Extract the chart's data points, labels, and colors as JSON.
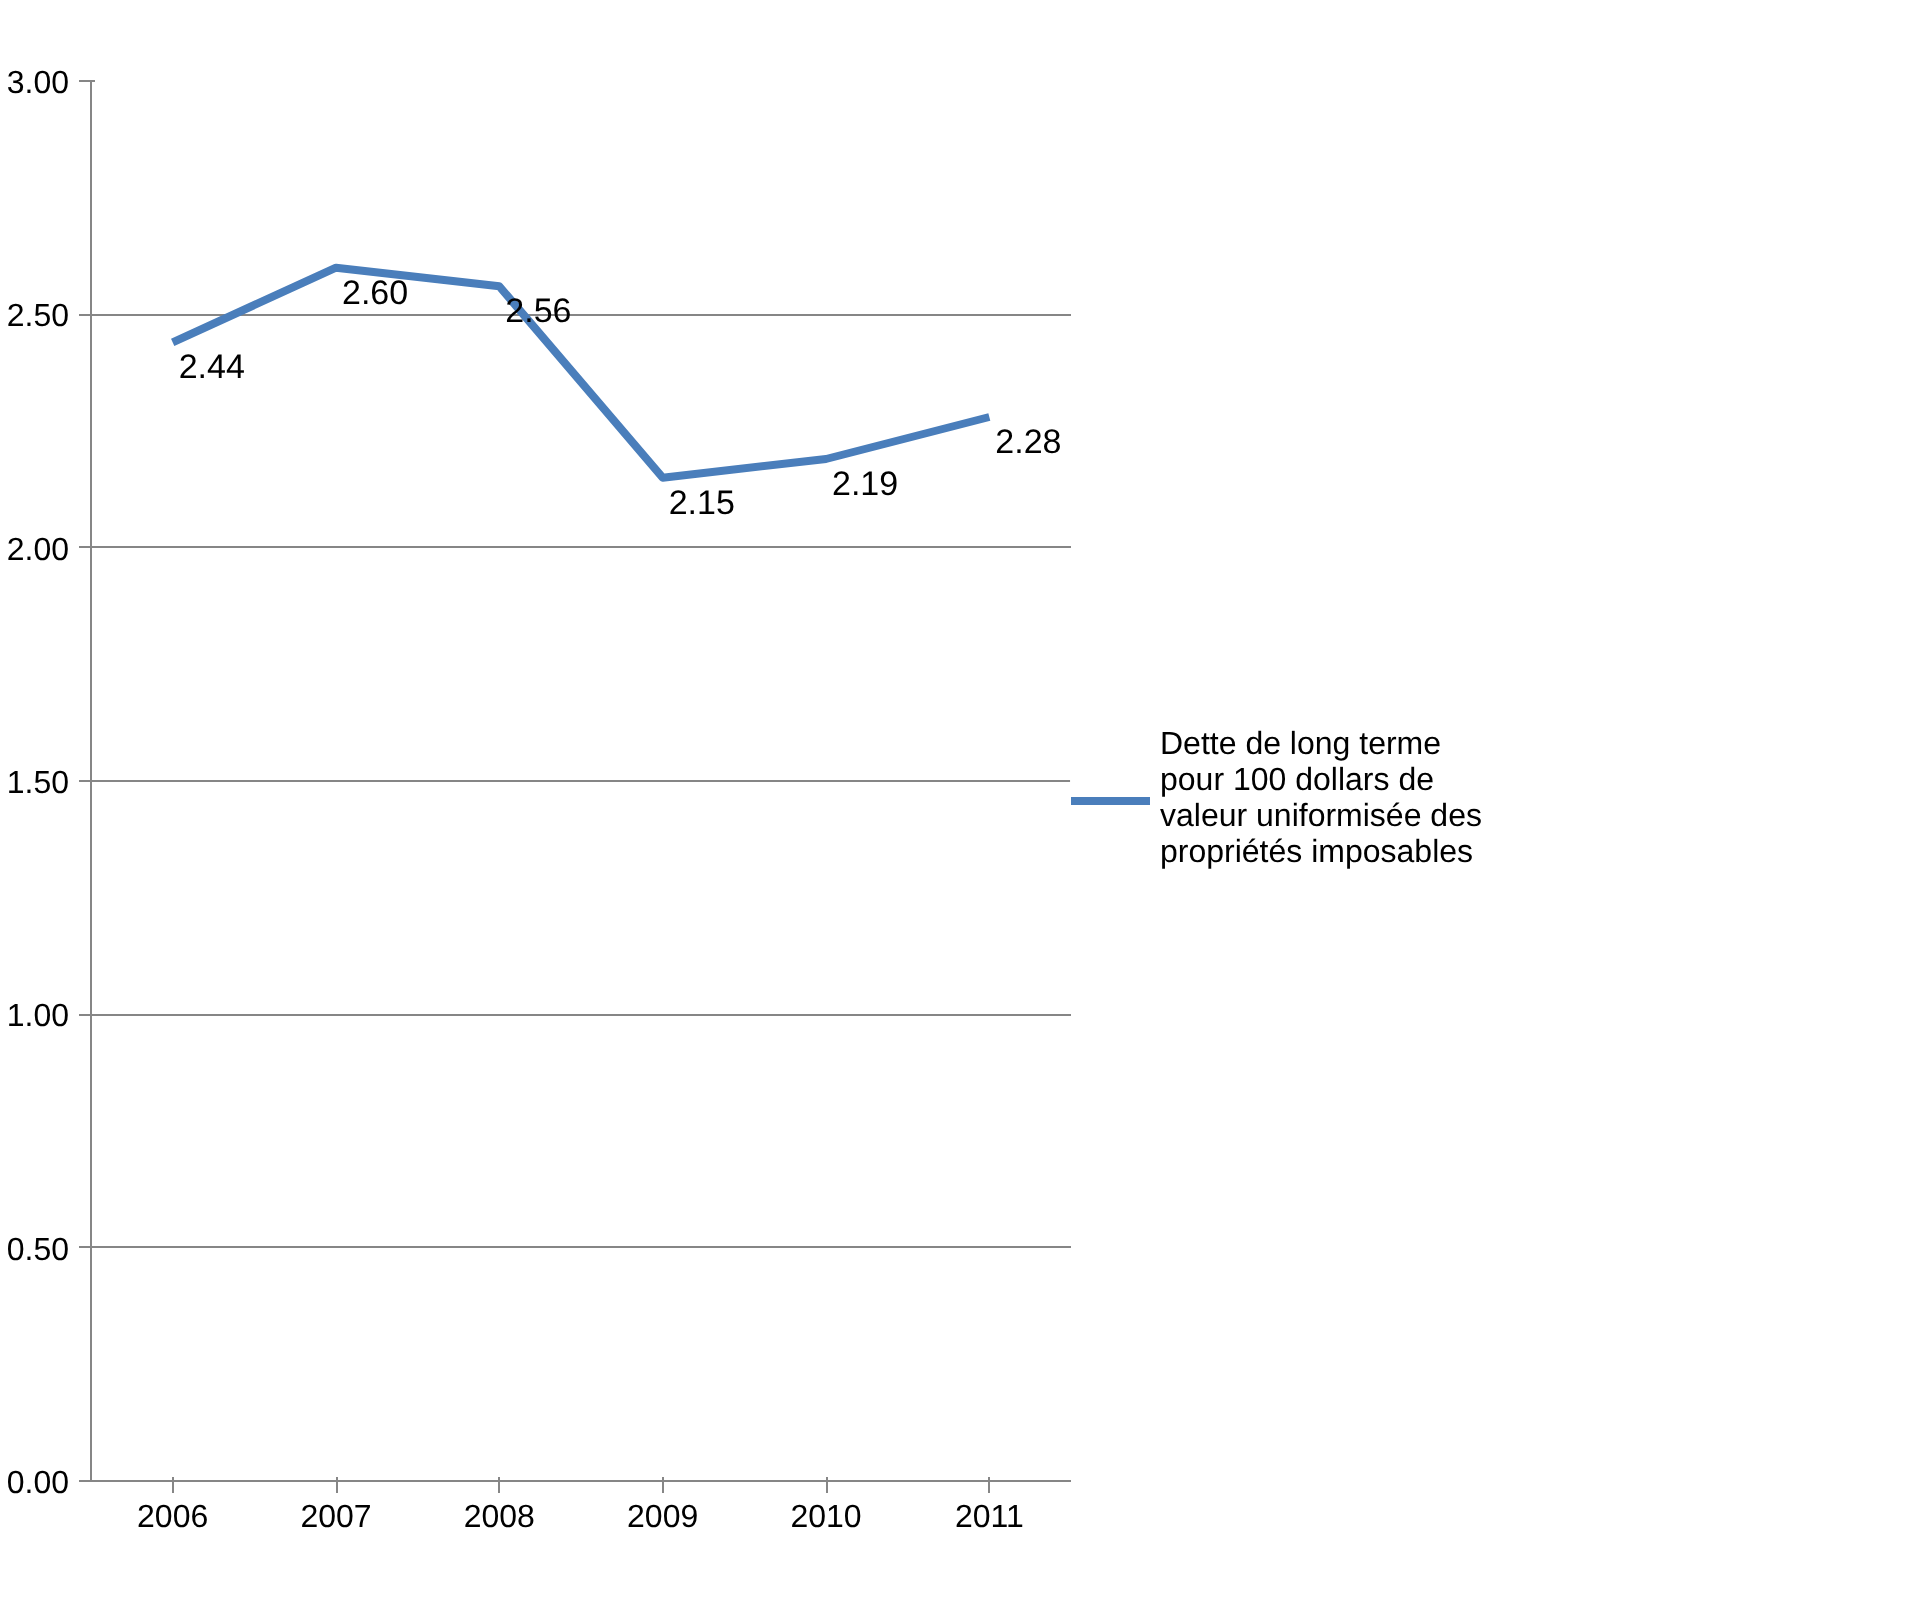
{
  "chart_data": {
    "type": "line",
    "categories": [
      "2006",
      "2007",
      "2008",
      "2009",
      "2010",
      "2011"
    ],
    "series": [
      {
        "name": "Dette de long terme pour 100 dollars de valeur uniformisée des propriétés imposables",
        "color": "#4a7ebb",
        "values": [
          2.44,
          2.6,
          2.56,
          2.15,
          2.19,
          2.28
        ],
        "value_labels": [
          "2.44",
          "2.60",
          "2.56",
          "2.15",
          "2.19",
          "2.28"
        ]
      }
    ],
    "ylim": [
      0,
      3
    ],
    "yticks": [
      {
        "value": 0,
        "label": "0.00"
      },
      {
        "value": 0.5,
        "label": "0.50"
      },
      {
        "value": 1,
        "label": "1.00"
      },
      {
        "value": 1.5,
        "label": "1.50"
      },
      {
        "value": 2,
        "label": "2.00"
      },
      {
        "value": 2.5,
        "label": "2.50"
      },
      {
        "value": 3,
        "label": "3.00"
      }
    ],
    "grid": "y",
    "legend": "right",
    "marker": "none",
    "line_style": "solid"
  }
}
